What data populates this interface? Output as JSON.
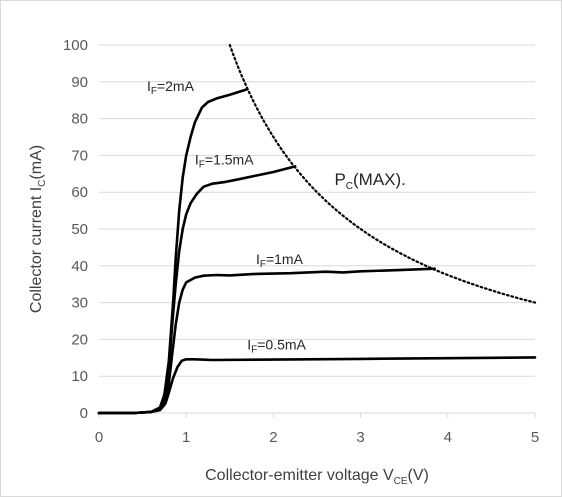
{
  "chart_data": {
    "type": "line",
    "title": "",
    "xlabel": {
      "main": "Collector-emitter voltage V",
      "sub": "CE",
      "suffix": "(V)"
    },
    "ylabel": {
      "main": "Collector current I",
      "sub": "C",
      "suffix": "(mA)"
    },
    "xlim": [
      0,
      5
    ],
    "ylim": [
      0,
      100
    ],
    "xticks": [
      0,
      1,
      2,
      3,
      4,
      5
    ],
    "yticks": [
      0,
      10,
      20,
      30,
      40,
      50,
      60,
      70,
      80,
      90,
      100
    ],
    "grid": {
      "y": true,
      "x": false,
      "color": "#d9d9d9"
    },
    "series": [
      {
        "name": "IF=2mA",
        "label": {
          "main": "I",
          "sub": "F",
          "suffix": "=2mA"
        },
        "label_at": [
          0.55,
          87.5
        ],
        "x": [
          0,
          0.4,
          0.6,
          0.7,
          0.75,
          0.8,
          0.85,
          0.88,
          0.92,
          0.96,
          1.0,
          1.05,
          1.1,
          1.18,
          1.25,
          1.35,
          1.5,
          1.7
        ],
        "y": [
          0,
          0,
          0.3,
          1.5,
          5,
          14,
          30,
          42,
          55,
          64,
          70,
          75,
          79,
          83,
          84.5,
          85.5,
          86.5,
          88
        ]
      },
      {
        "name": "IF=1.5mA",
        "label": {
          "main": "I",
          "sub": "F",
          "suffix": "=1.5mA"
        },
        "label_at": [
          1.1,
          67.5
        ],
        "x": [
          0,
          0.4,
          0.6,
          0.7,
          0.75,
          0.8,
          0.84,
          0.88,
          0.92,
          0.96,
          1.0,
          1.05,
          1.12,
          1.2,
          1.3,
          1.45,
          1.6,
          1.8,
          2.0,
          2.25
        ],
        "y": [
          0,
          0,
          0.3,
          1.5,
          4.5,
          12,
          24,
          35,
          44,
          50,
          54,
          57,
          59.5,
          61.5,
          62.3,
          62.8,
          63.5,
          64.5,
          65.5,
          67
        ]
      },
      {
        "name": "IF=1mA",
        "label": {
          "main": "I",
          "sub": "F",
          "suffix": "=1mA"
        },
        "label_at": [
          1.8,
          40.5
        ],
        "x": [
          0,
          0.4,
          0.6,
          0.7,
          0.76,
          0.8,
          0.84,
          0.88,
          0.92,
          0.96,
          1.0,
          1.1,
          1.2,
          1.35,
          1.5,
          1.8,
          2.2,
          2.6,
          2.8,
          3.0,
          3.4,
          3.85
        ],
        "y": [
          0,
          0,
          0.3,
          1.2,
          3.5,
          8,
          16,
          24,
          30,
          33.5,
          35.5,
          36.8,
          37.3,
          37.5,
          37.4,
          37.8,
          38,
          38.4,
          38.2,
          38.5,
          38.8,
          39.2
        ]
      },
      {
        "name": "IF=0.5mA",
        "label": {
          "main": "I",
          "sub": "F",
          "suffix": "=0.5mA"
        },
        "label_at": [
          1.7,
          17.3
        ],
        "x": [
          0,
          0.4,
          0.6,
          0.7,
          0.76,
          0.8,
          0.85,
          0.9,
          0.95,
          1.0,
          1.1,
          1.3,
          2.0,
          3.0,
          4.0,
          5.0
        ],
        "y": [
          0,
          0,
          0.3,
          0.8,
          2.5,
          5.5,
          9.5,
          12.5,
          14.2,
          14.6,
          14.6,
          14.4,
          14.5,
          14.7,
          14.9,
          15.1
        ]
      }
    ],
    "pc_max": {
      "label": {
        "main": "P",
        "sub": "C",
        "suffix": "(MAX)."
      },
      "label_at": [
        2.7,
        62
      ],
      "power_mW": 150,
      "x_range": [
        1.5,
        5.0
      ]
    },
    "colors": {
      "curve": "#000000",
      "axis": "#d9d9d9",
      "tick": "#595959",
      "title": "#404040"
    }
  }
}
